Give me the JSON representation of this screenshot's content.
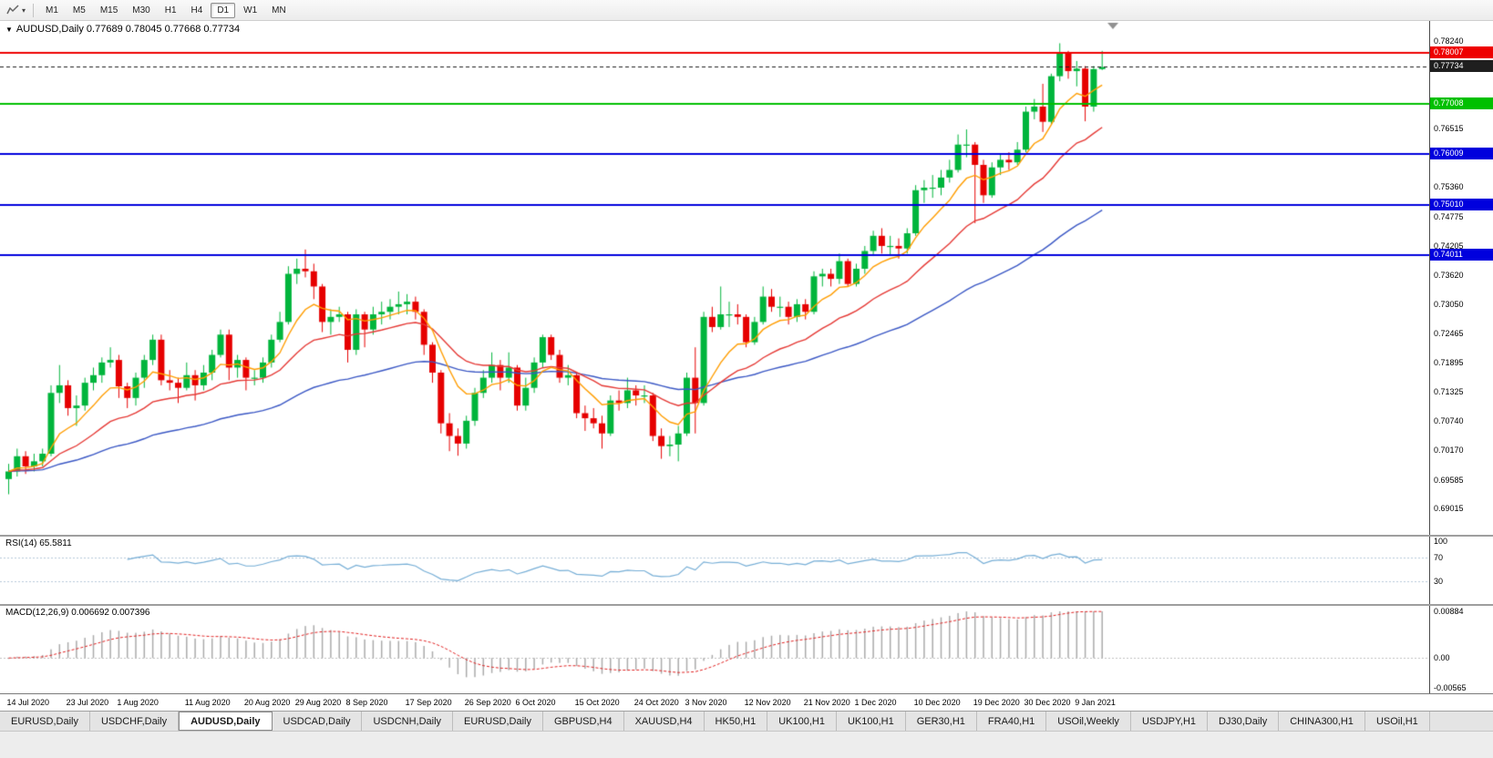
{
  "toolbar": {
    "timeframes": [
      "M1",
      "M5",
      "M15",
      "M30",
      "H1",
      "H4",
      "D1",
      "W1",
      "MN"
    ],
    "active_timeframe": "D1",
    "icons": [
      "line-chart-icon",
      "chevron-down-icon"
    ]
  },
  "chart_header": "AUDUSD,Daily  0.77689 0.78045 0.77668 0.77734",
  "chart_data": {
    "type": "candlestick",
    "symbol": "AUDUSD",
    "timeframe": "Daily",
    "ohlc_display": {
      "open": "0.77689",
      "high": "0.78045",
      "low": "0.77668",
      "close": "0.77734"
    },
    "up_color": "#00b53c",
    "down_color": "#e60000",
    "y_axis": {
      "min": 0.685,
      "max": 0.7864,
      "ticks": [
        {
          "v": 0.7824,
          "label": "0.78240"
        },
        {
          "v": 0.76515,
          "label": "0.76515"
        },
        {
          "v": 0.7536,
          "label": "0.75360"
        },
        {
          "v": 0.74775,
          "label": "0.74775"
        },
        {
          "v": 0.74205,
          "label": "0.74205"
        },
        {
          "v": 0.7362,
          "label": "0.73620"
        },
        {
          "v": 0.7305,
          "label": "0.73050"
        },
        {
          "v": 0.72465,
          "label": "0.72465"
        },
        {
          "v": 0.71895,
          "label": "0.71895"
        },
        {
          "v": 0.71325,
          "label": "0.71325"
        },
        {
          "v": 0.7074,
          "label": "0.70740"
        },
        {
          "v": 0.7017,
          "label": "0.70170"
        },
        {
          "v": 0.69585,
          "label": "0.69585"
        },
        {
          "v": 0.69015,
          "label": "0.69015"
        }
      ]
    },
    "levels": [
      {
        "value": 0.78007,
        "label": "0.78007",
        "color": "#ee0000",
        "width": 2,
        "style": "solid"
      },
      {
        "value": 0.77734,
        "label": "0.77734",
        "color": "#1f1f1f",
        "width": 1,
        "style": "dash",
        "is_price": true
      },
      {
        "value": 0.77008,
        "label": "0.77008",
        "color": "#00c000",
        "width": 2,
        "style": "solid"
      },
      {
        "value": 0.76009,
        "label": "0.76009",
        "color": "#0000dd",
        "width": 2,
        "style": "solid"
      },
      {
        "value": 0.7501,
        "label": "0.75010",
        "color": "#0000dd",
        "width": 2,
        "style": "solid"
      },
      {
        "value": 0.74011,
        "label": "0.74011",
        "color": "#0000dd",
        "width": 2,
        "style": "solid"
      }
    ],
    "moving_averages": [
      {
        "period": 8,
        "color": "#ff9d00"
      },
      {
        "period": 21,
        "color": "#e53935"
      },
      {
        "period": 55,
        "color": "#3a57c4"
      }
    ],
    "candles": [
      [
        0.696,
        0.699,
        0.693,
        0.6975
      ],
      [
        0.6975,
        0.702,
        0.6965,
        0.7005
      ],
      [
        0.7005,
        0.7015,
        0.697,
        0.6985
      ],
      [
        0.6985,
        0.701,
        0.6975,
        0.6995
      ],
      [
        0.6995,
        0.702,
        0.6985,
        0.701
      ],
      [
        0.701,
        0.7145,
        0.7005,
        0.713
      ],
      [
        0.713,
        0.7185,
        0.711,
        0.7145
      ],
      [
        0.7145,
        0.7155,
        0.7085,
        0.71
      ],
      [
        0.71,
        0.7125,
        0.7065,
        0.7105
      ],
      [
        0.7105,
        0.716,
        0.7095,
        0.715
      ],
      [
        0.715,
        0.718,
        0.7135,
        0.7165
      ],
      [
        0.7165,
        0.72,
        0.715,
        0.719
      ],
      [
        0.719,
        0.722,
        0.718,
        0.7195
      ],
      [
        0.7195,
        0.7205,
        0.712,
        0.7143
      ],
      [
        0.7143,
        0.715,
        0.71,
        0.712
      ],
      [
        0.712,
        0.717,
        0.7105,
        0.716
      ],
      [
        0.716,
        0.7205,
        0.714,
        0.7195
      ],
      [
        0.7195,
        0.7245,
        0.7185,
        0.7235
      ],
      [
        0.7235,
        0.7245,
        0.7145,
        0.7155
      ],
      [
        0.7155,
        0.7175,
        0.7135,
        0.715
      ],
      [
        0.715,
        0.716,
        0.711,
        0.714
      ],
      [
        0.714,
        0.719,
        0.7135,
        0.7165
      ],
      [
        0.7165,
        0.7175,
        0.7115,
        0.7145
      ],
      [
        0.7145,
        0.7185,
        0.7135,
        0.717
      ],
      [
        0.717,
        0.7215,
        0.7155,
        0.7205
      ],
      [
        0.7205,
        0.7255,
        0.72,
        0.7245
      ],
      [
        0.7245,
        0.7255,
        0.7155,
        0.718
      ],
      [
        0.718,
        0.7205,
        0.716,
        0.7195
      ],
      [
        0.7195,
        0.72,
        0.7135,
        0.716
      ],
      [
        0.716,
        0.7175,
        0.7145,
        0.716
      ],
      [
        0.716,
        0.72,
        0.715,
        0.719
      ],
      [
        0.719,
        0.7245,
        0.718,
        0.7235
      ],
      [
        0.7235,
        0.729,
        0.723,
        0.727
      ],
      [
        0.727,
        0.738,
        0.7265,
        0.7365
      ],
      [
        0.7365,
        0.7395,
        0.7345,
        0.7375
      ],
      [
        0.7375,
        0.7413,
        0.7358,
        0.737
      ],
      [
        0.737,
        0.7385,
        0.7315,
        0.734
      ],
      [
        0.734,
        0.7345,
        0.725,
        0.727
      ],
      [
        0.727,
        0.7295,
        0.7245,
        0.728
      ],
      [
        0.728,
        0.73,
        0.727,
        0.7285
      ],
      [
        0.7285,
        0.729,
        0.719,
        0.7215
      ],
      [
        0.7215,
        0.7295,
        0.7205,
        0.7285
      ],
      [
        0.7285,
        0.729,
        0.722,
        0.7255
      ],
      [
        0.7255,
        0.73,
        0.7245,
        0.7285
      ],
      [
        0.7285,
        0.731,
        0.7265,
        0.729
      ],
      [
        0.729,
        0.7315,
        0.7275,
        0.73
      ],
      [
        0.73,
        0.733,
        0.7285,
        0.7305
      ],
      [
        0.7305,
        0.7325,
        0.7285,
        0.731
      ],
      [
        0.731,
        0.732,
        0.7275,
        0.729
      ],
      [
        0.729,
        0.7295,
        0.7205,
        0.7225
      ],
      [
        0.7225,
        0.723,
        0.715,
        0.717
      ],
      [
        0.717,
        0.7175,
        0.705,
        0.707
      ],
      [
        0.707,
        0.709,
        0.7015,
        0.7045
      ],
      [
        0.7045,
        0.706,
        0.7006,
        0.703
      ],
      [
        0.703,
        0.7085,
        0.702,
        0.7075
      ],
      [
        0.7075,
        0.714,
        0.7065,
        0.713
      ],
      [
        0.713,
        0.7175,
        0.712,
        0.716
      ],
      [
        0.716,
        0.721,
        0.715,
        0.7185
      ],
      [
        0.7185,
        0.7195,
        0.7135,
        0.716
      ],
      [
        0.716,
        0.721,
        0.715,
        0.718
      ],
      [
        0.718,
        0.7185,
        0.7095,
        0.7105
      ],
      [
        0.7105,
        0.716,
        0.7095,
        0.714
      ],
      [
        0.714,
        0.72,
        0.713,
        0.719
      ],
      [
        0.719,
        0.7245,
        0.718,
        0.724
      ],
      [
        0.724,
        0.7245,
        0.7195,
        0.7205
      ],
      [
        0.7205,
        0.7215,
        0.715,
        0.716
      ],
      [
        0.716,
        0.7185,
        0.7145,
        0.7165
      ],
      [
        0.7165,
        0.717,
        0.708,
        0.709
      ],
      [
        0.709,
        0.7105,
        0.7055,
        0.708
      ],
      [
        0.708,
        0.71,
        0.706,
        0.707
      ],
      [
        0.707,
        0.7085,
        0.702,
        0.705
      ],
      [
        0.705,
        0.7125,
        0.7045,
        0.7115
      ],
      [
        0.7115,
        0.7135,
        0.7095,
        0.711
      ],
      [
        0.711,
        0.716,
        0.71,
        0.7135
      ],
      [
        0.7135,
        0.7145,
        0.7105,
        0.7125
      ],
      [
        0.7125,
        0.7145,
        0.711,
        0.7125
      ],
      [
        0.7125,
        0.713,
        0.7035,
        0.7045
      ],
      [
        0.7045,
        0.706,
        0.7,
        0.7025
      ],
      [
        0.7025,
        0.7045,
        0.7005,
        0.7028
      ],
      [
        0.7028,
        0.7065,
        0.6995,
        0.705
      ],
      [
        0.705,
        0.717,
        0.7045,
        0.716
      ],
      [
        0.716,
        0.722,
        0.705,
        0.711
      ],
      [
        0.711,
        0.729,
        0.7105,
        0.728
      ],
      [
        0.728,
        0.73,
        0.725,
        0.726
      ],
      [
        0.726,
        0.734,
        0.7255,
        0.7285
      ],
      [
        0.7285,
        0.731,
        0.726,
        0.7285
      ],
      [
        0.7285,
        0.7305,
        0.7265,
        0.728
      ],
      [
        0.728,
        0.7285,
        0.722,
        0.723
      ],
      [
        0.723,
        0.728,
        0.7225,
        0.727
      ],
      [
        0.727,
        0.734,
        0.7265,
        0.732
      ],
      [
        0.732,
        0.7335,
        0.729,
        0.73
      ],
      [
        0.73,
        0.732,
        0.728,
        0.73
      ],
      [
        0.73,
        0.731,
        0.7265,
        0.728
      ],
      [
        0.728,
        0.7315,
        0.727,
        0.7305
      ],
      [
        0.7305,
        0.7315,
        0.7275,
        0.729
      ],
      [
        0.729,
        0.737,
        0.7285,
        0.736
      ],
      [
        0.736,
        0.7375,
        0.734,
        0.7365
      ],
      [
        0.7365,
        0.7375,
        0.734,
        0.7355
      ],
      [
        0.7355,
        0.7405,
        0.7345,
        0.739
      ],
      [
        0.739,
        0.7395,
        0.734,
        0.7345
      ],
      [
        0.7345,
        0.7385,
        0.734,
        0.7375
      ],
      [
        0.7375,
        0.742,
        0.7365,
        0.741
      ],
      [
        0.741,
        0.745,
        0.74,
        0.744
      ],
      [
        0.744,
        0.7455,
        0.7405,
        0.742
      ],
      [
        0.742,
        0.744,
        0.74,
        0.742
      ],
      [
        0.742,
        0.7435,
        0.7395,
        0.7415
      ],
      [
        0.7415,
        0.7455,
        0.7405,
        0.7445
      ],
      [
        0.7445,
        0.754,
        0.744,
        0.753
      ],
      [
        0.753,
        0.755,
        0.7505,
        0.7535
      ],
      [
        0.7535,
        0.756,
        0.7515,
        0.7535
      ],
      [
        0.7535,
        0.757,
        0.752,
        0.7555
      ],
      [
        0.7555,
        0.759,
        0.7545,
        0.757
      ],
      [
        0.757,
        0.764,
        0.7565,
        0.762
      ],
      [
        0.762,
        0.765,
        0.7595,
        0.762
      ],
      [
        0.762,
        0.7625,
        0.7465,
        0.758
      ],
      [
        0.758,
        0.759,
        0.7505,
        0.752
      ],
      [
        0.752,
        0.7585,
        0.7515,
        0.7575
      ],
      [
        0.7575,
        0.76,
        0.756,
        0.759
      ],
      [
        0.759,
        0.7605,
        0.757,
        0.7585
      ],
      [
        0.7585,
        0.7625,
        0.758,
        0.761
      ],
      [
        0.761,
        0.7695,
        0.7605,
        0.7685
      ],
      [
        0.7685,
        0.771,
        0.767,
        0.7695
      ],
      [
        0.7695,
        0.774,
        0.7645,
        0.7665
      ],
      [
        0.7665,
        0.776,
        0.766,
        0.7755
      ],
      [
        0.7755,
        0.782,
        0.7745,
        0.78
      ],
      [
        0.78,
        0.7805,
        0.775,
        0.7765
      ],
      [
        0.7765,
        0.7785,
        0.7735,
        0.777
      ],
      [
        0.777,
        0.7775,
        0.7666,
        0.7695
      ],
      [
        0.7695,
        0.7775,
        0.7685,
        0.7769
      ],
      [
        0.7769,
        0.7805,
        0.7767,
        0.7773
      ]
    ],
    "time_labels": [
      {
        "index": 0,
        "label": "14 Jul 2020"
      },
      {
        "index": 7,
        "label": "23 Jul 2020"
      },
      {
        "index": 13,
        "label": "1 Aug 2020"
      },
      {
        "index": 21,
        "label": "11 Aug 2020"
      },
      {
        "index": 28,
        "label": "20 Aug 2020"
      },
      {
        "index": 34,
        "label": "29 Aug 2020"
      },
      {
        "index": 40,
        "label": "8 Sep 2020"
      },
      {
        "index": 47,
        "label": "17 Sep 2020"
      },
      {
        "index": 54,
        "label": "26 Sep 2020"
      },
      {
        "index": 60,
        "label": "6 Oct 2020"
      },
      {
        "index": 67,
        "label": "15 Oct 2020"
      },
      {
        "index": 74,
        "label": "24 Oct 2020"
      },
      {
        "index": 80,
        "label": "3 Nov 2020"
      },
      {
        "index": 87,
        "label": "12 Nov 2020"
      },
      {
        "index": 94,
        "label": "21 Nov 2020"
      },
      {
        "index": 100,
        "label": "1 Dec 2020"
      },
      {
        "index": 107,
        "label": "10 Dec 2020"
      },
      {
        "index": 114,
        "label": "19 Dec 2020"
      },
      {
        "index": 120,
        "label": "30 Dec 2020"
      },
      {
        "index": 126,
        "label": "9 Jan 2021"
      }
    ],
    "rsi": {
      "header": "RSI(14) 65.5811",
      "period": 14,
      "value_display": "65.5811",
      "color": "#76aed6",
      "levels": [
        70,
        30
      ],
      "axis_labels": [
        {
          "v": 100,
          "label": "100"
        },
        {
          "v": 70,
          "label": "70"
        },
        {
          "v": 30,
          "label": "30"
        }
      ]
    },
    "macd": {
      "header": "MACD(12,26,9) 0.006692 0.007396",
      "fast": 12,
      "slow": 26,
      "signal": 9,
      "histogram_color": "#ababab",
      "signal_color": "#e02020",
      "axis": {
        "max": 0.00884,
        "min": -0.00565,
        "labels": [
          {
            "v": 0.00884,
            "label": "0.00884"
          },
          {
            "v": 0,
            "label": "0.00"
          },
          {
            "v": -0.00565,
            "label": "-0.00565"
          }
        ]
      }
    }
  },
  "tabs": {
    "active_index": 2,
    "items": [
      "EURUSD,Daily",
      "USDCHF,Daily",
      "AUDUSD,Daily",
      "USDCAD,Daily",
      "USDCNH,Daily",
      "EURUSD,Daily",
      "GBPUSD,H4",
      "XAUUSD,H4",
      "HK50,H1",
      "UK100,H1",
      "UK100,H1",
      "GER30,H1",
      "FRA40,H1",
      "USOil,Weekly",
      "USDJPY,H1",
      "DJ30,Daily",
      "CHINA300,H1",
      "USOil,H1"
    ]
  }
}
